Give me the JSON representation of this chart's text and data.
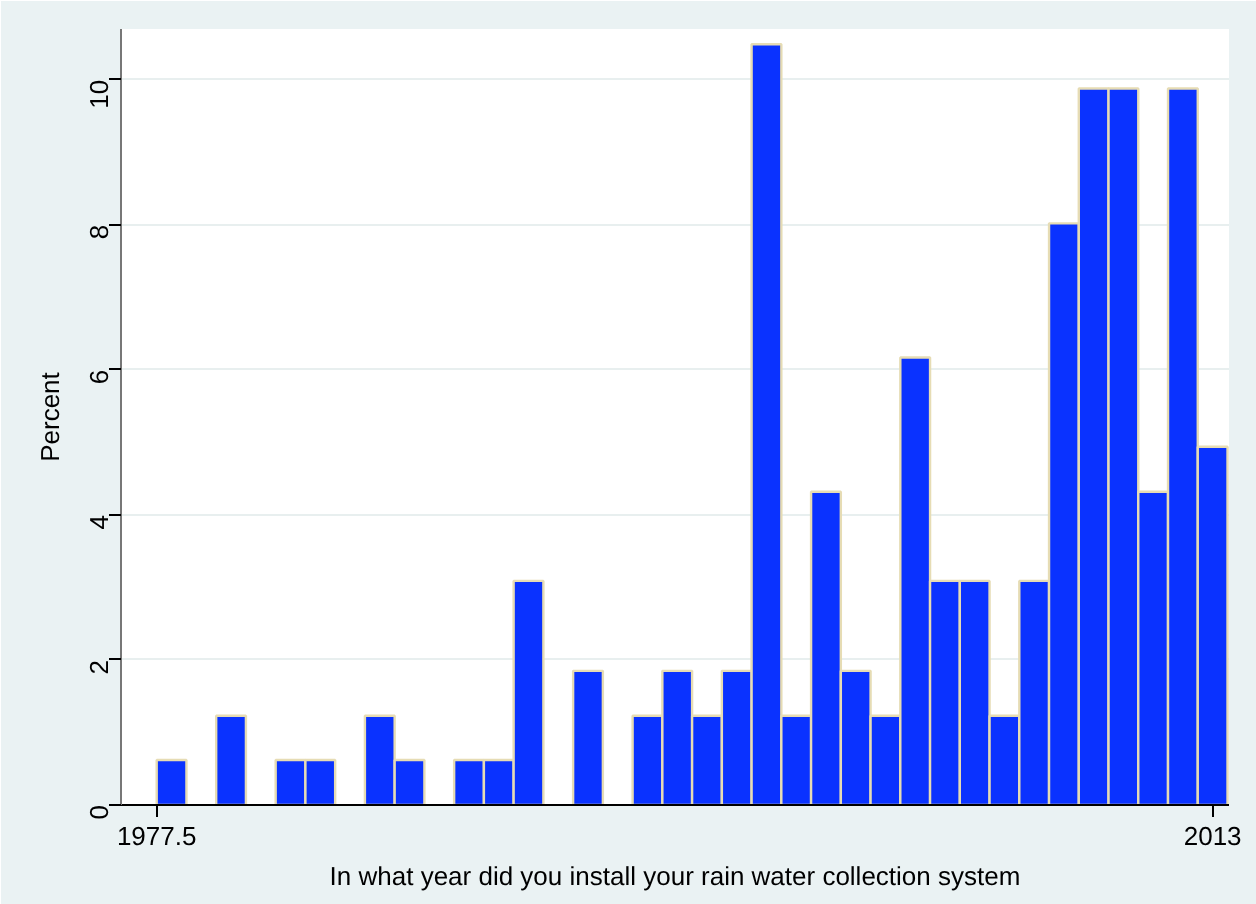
{
  "chart_data": {
    "type": "histogram",
    "xlabel": "In what year did you install your rain water collection system",
    "ylabel": "Percent",
    "bins": [
      1977.5,
      1978.5,
      1979.5,
      1980.5,
      1981.5,
      1982.5,
      1983.5,
      1984.5,
      1985.5,
      1986.5,
      1987.5,
      1988.5,
      1989.5,
      1990.5,
      1991.5,
      1992.5,
      1993.5,
      1994.5,
      1995.5,
      1996.5,
      1997.5,
      1998.5,
      1999.5,
      2000.5,
      2001.5,
      2002.5,
      2003.5,
      2004.5,
      2005.5,
      2006.5,
      2007.5,
      2008.5,
      2009.5,
      2010.5,
      2011.5,
      2012.5,
      2013.5
    ],
    "values": [
      0.62,
      0,
      1.23,
      0,
      0.62,
      0.62,
      0,
      1.23,
      0.62,
      0,
      0.62,
      0.62,
      3.09,
      0,
      1.85,
      0,
      1.23,
      1.85,
      1.23,
      1.85,
      10.49,
      1.23,
      4.32,
      1.85,
      1.23,
      6.17,
      3.09,
      3.09,
      1.23,
      3.09,
      8.02,
      9.88,
      9.88,
      4.32,
      9.88,
      4.94
    ],
    "color": "#0a32ff",
    "xlim": [
      1976.3,
      2013.55
    ],
    "ylim": [
      0,
      10.7
    ],
    "xticks": [
      1977.5,
      2013
    ],
    "yticks": [
      0,
      2,
      4,
      6,
      8,
      10
    ],
    "grid": "y"
  }
}
